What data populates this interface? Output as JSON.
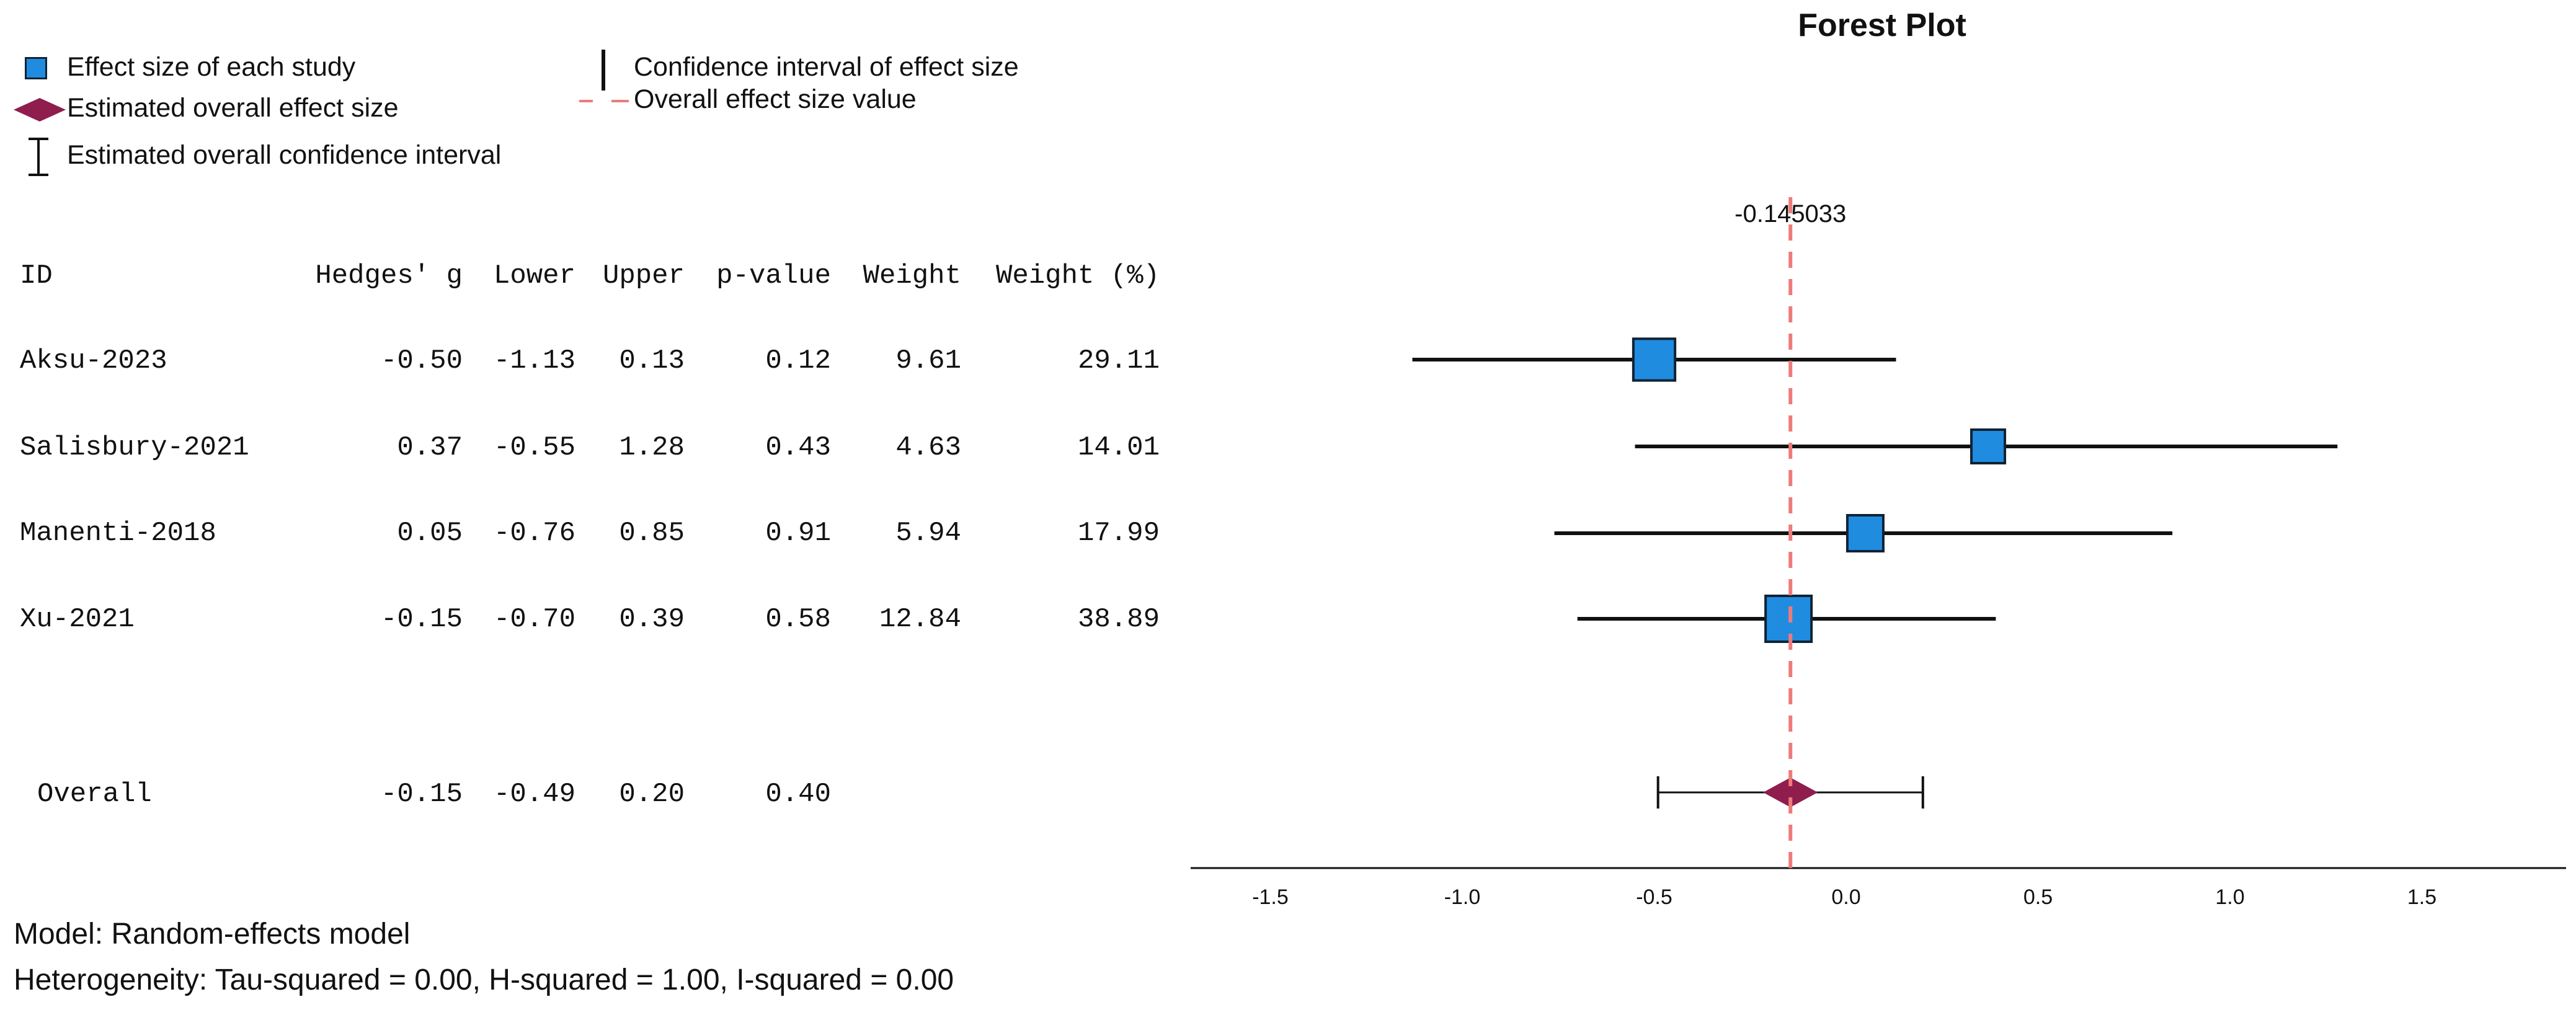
{
  "legend": {
    "effect_size_each_study": "Effect size of each study",
    "estimated_overall_effect_size": "Estimated overall effect size",
    "estimated_overall_ci": "Estimated overall confidence interval",
    "ci_of_effect_size": "Confidence interval of effect size",
    "overall_effect_size_value": "Overall effect size value"
  },
  "table": {
    "headers": [
      "ID",
      "Hedges' g",
      "Lower",
      "Upper",
      "p-value",
      "Weight",
      "Weight (%)"
    ],
    "rows": [
      {
        "id": "Aksu-2023",
        "g": "-0.50",
        "lower": "-1.13",
        "upper": "0.13",
        "p": "0.12",
        "w": "9.61",
        "wp": "29.11"
      },
      {
        "id": "Salisbury-2021",
        "g": "0.37",
        "lower": "-0.55",
        "upper": "1.28",
        "p": "0.43",
        "w": "4.63",
        "wp": "14.01"
      },
      {
        "id": "Manenti-2018",
        "g": "0.05",
        "lower": "-0.76",
        "upper": "0.85",
        "p": "0.91",
        "w": "5.94",
        "wp": "17.99"
      },
      {
        "id": "Xu-2021",
        "g": "-0.15",
        "lower": "-0.70",
        "upper": "0.39",
        "p": "0.58",
        "w": "12.84",
        "wp": "38.89"
      }
    ],
    "overall": {
      "id": "Overall",
      "g": "-0.15",
      "lower": "-0.49",
      "upper": "0.20",
      "p": "0.40"
    }
  },
  "footer": {
    "model": "Model: Random-effects model",
    "heterogeneity": "Heterogeneity: Tau-squared = 0.00, H-squared = 1.00, I-squared = 0.00"
  },
  "colors": {
    "study_box": "#1f8ce0",
    "overall_diamond": "#8f1d4e",
    "reference_line": "#ef7a7a",
    "axis": "#111111"
  },
  "chart_data": {
    "type": "forest",
    "title": "Forest Plot",
    "overall_label": "-0.145033",
    "overall_value": -0.145033,
    "xlim": [
      -1.7,
      1.85
    ],
    "xticks": [
      -1.5,
      -1.0,
      -0.5,
      0.0,
      0.5,
      1.0,
      1.5
    ],
    "xtick_labels": [
      "-1.5",
      "-1.0",
      "-0.5",
      "0.0",
      "0.5",
      "1.0",
      "1.5"
    ],
    "studies": [
      {
        "name": "Aksu-2023",
        "effect": -0.5,
        "lower": -1.13,
        "upper": 0.13,
        "weight_pct": 29.11
      },
      {
        "name": "Salisbury-2021",
        "effect": 0.37,
        "lower": -0.55,
        "upper": 1.28,
        "weight_pct": 14.01
      },
      {
        "name": "Manenti-2018",
        "effect": 0.05,
        "lower": -0.76,
        "upper": 0.85,
        "weight_pct": 17.99
      },
      {
        "name": "Xu-2021",
        "effect": -0.15,
        "lower": -0.7,
        "upper": 0.39,
        "weight_pct": 38.89
      }
    ],
    "overall": {
      "effect": -0.145033,
      "lower": -0.49,
      "upper": 0.2
    }
  }
}
